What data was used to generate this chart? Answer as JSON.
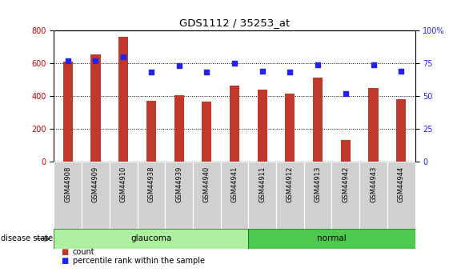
{
  "title": "GDS1112 / 35253_at",
  "samples": [
    "GSM44908",
    "GSM44909",
    "GSM44910",
    "GSM44938",
    "GSM44939",
    "GSM44940",
    "GSM44941",
    "GSM44911",
    "GSM44912",
    "GSM44913",
    "GSM44942",
    "GSM44943",
    "GSM44944"
  ],
  "counts": [
    610,
    655,
    760,
    370,
    405,
    365,
    465,
    440,
    415,
    510,
    130,
    450,
    380
  ],
  "percentiles": [
    77,
    77,
    80,
    68,
    73,
    68,
    75,
    69,
    68,
    74,
    52,
    74,
    69
  ],
  "groups": [
    "glaucoma",
    "glaucoma",
    "glaucoma",
    "glaucoma",
    "glaucoma",
    "glaucoma",
    "glaucoma",
    "normal",
    "normal",
    "normal",
    "normal",
    "normal",
    "normal"
  ],
  "bar_color": "#C0392B",
  "dot_color": "#2222ee",
  "glaucoma_color": "#adf0a0",
  "normal_color": "#4dc94d",
  "label_bg_color": "#D0D0D0",
  "ylim_left": [
    0,
    800
  ],
  "ylim_right": [
    0,
    100
  ],
  "yticks_left": [
    0,
    200,
    400,
    600,
    800
  ],
  "yticks_right": [
    0,
    25,
    50,
    75,
    100
  ],
  "ylabel_left_color": "#CC0000",
  "ylabel_right_color": "#2222ee",
  "disease_state_label": "disease state",
  "glaucoma_label": "glaucoma",
  "normal_label": "normal",
  "legend_count": "count",
  "legend_percentile": "percentile rank within the sample",
  "grid_color": "black",
  "grid_lines": [
    200,
    400,
    600
  ]
}
